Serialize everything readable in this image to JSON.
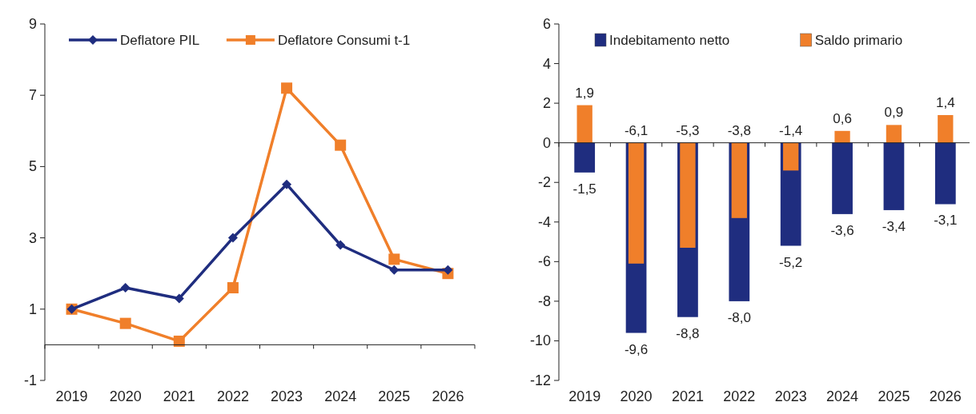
{
  "chart_data": [
    {
      "type": "line",
      "categories": [
        "2019",
        "2020",
        "2021",
        "2022",
        "2023",
        "2024",
        "2025",
        "2026"
      ],
      "ylim": [
        -1,
        9
      ],
      "yticks": [
        -1,
        1,
        3,
        5,
        7,
        9
      ],
      "legend": "top",
      "series": [
        {
          "name": "Deflatore PIL",
          "color": "#1f2d7f",
          "marker": "diamond",
          "values": [
            1.0,
            1.6,
            1.3,
            3.0,
            4.5,
            2.8,
            2.1,
            2.1
          ]
        },
        {
          "name": "Deflatore Consumi t-1",
          "color": "#f07f2a",
          "marker": "square",
          "values": [
            1.0,
            0.6,
            0.1,
            1.6,
            7.2,
            5.6,
            2.4,
            2.0
          ]
        }
      ]
    },
    {
      "type": "bar",
      "categories": [
        "2019",
        "2020",
        "2021",
        "2022",
        "2023",
        "2024",
        "2025",
        "2026"
      ],
      "ylim": [
        -12,
        6
      ],
      "yticks": [
        -12,
        -10,
        -8,
        -6,
        -4,
        -2,
        0,
        2,
        4,
        6
      ],
      "legend": "top",
      "series": [
        {
          "name": "Indebitamento netto",
          "color": "#1f2d7f",
          "values": [
            -1.5,
            -9.6,
            -8.8,
            -8.0,
            -5.2,
            -3.6,
            -3.4,
            -3.1
          ],
          "value_labels": [
            "-1,5",
            "-9,6",
            "-8,8",
            "-8,0",
            "-5,2",
            "-3,6",
            "-3,4",
            "-3,1"
          ]
        },
        {
          "name": "Saldo primario",
          "color": "#f07f2a",
          "values": [
            1.9,
            -6.1,
            -5.3,
            -3.8,
            -1.4,
            0.6,
            0.9,
            1.4
          ],
          "value_labels": [
            "1,9",
            "-6,1",
            "-5,3",
            "-3,8",
            "-1,4",
            "0,6",
            "0,9",
            "1,4"
          ]
        }
      ]
    }
  ]
}
